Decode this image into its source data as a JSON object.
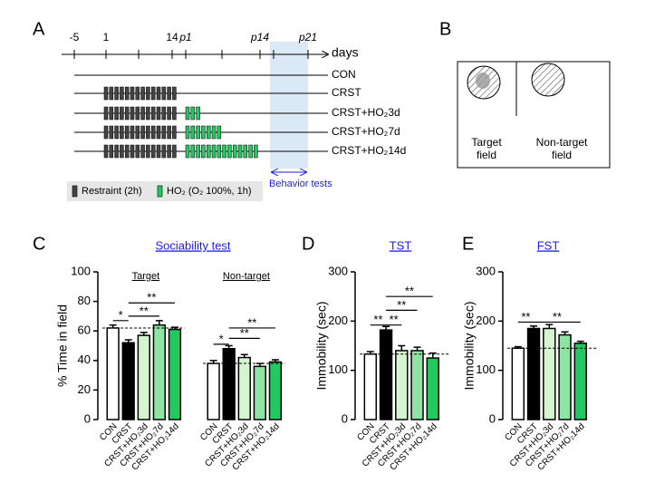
{
  "panel_a": {
    "letter": "A",
    "timeline_labels": [
      "-5",
      "1",
      "14",
      "p1",
      "p14",
      "p21"
    ],
    "axis_label": "days",
    "rows": [
      "CON",
      "CRST",
      "CRST+HO₂3d",
      "CRST+HO₂7d",
      "CRST+HO₂14d"
    ],
    "legend": [
      "Restraint (2h)",
      "HO₂ (O₂ 100%, 1h)"
    ],
    "behavior_label": "Behavior tests"
  },
  "panel_b": {
    "letter": "B",
    "target_label": [
      "Target",
      "field"
    ],
    "nontarget_label": [
      "Non-target",
      "field"
    ]
  },
  "chart_data": [
    {
      "type": "bar",
      "panel": "C",
      "title": "Sociability test",
      "ylabel": "% Time in field",
      "categories": [
        "CON",
        "CRST",
        "CRST+HO₂3d",
        "CRST+HO₂7d",
        "CRST+HO₂14d"
      ],
      "colors": [
        "#ffffff",
        "#000000",
        "#d4f5d0",
        "#8fe3a4",
        "#22c860"
      ],
      "ylim": [
        0,
        100
      ],
      "yticks": [
        0,
        20,
        40,
        60,
        80,
        100
      ],
      "groups": [
        {
          "label": "Target",
          "values": [
            62,
            52,
            57,
            64,
            61
          ],
          "errors": [
            2,
            2,
            2,
            3,
            1.5
          ],
          "reference_line": 62,
          "significance": [
            {
              "from": 0,
              "to": 1,
              "y": 67,
              "label": "*"
            },
            {
              "from": 1,
              "to": 3,
              "y": 70,
              "label": "**"
            },
            {
              "from": 1,
              "to": 4,
              "y": 79,
              "label": "**"
            }
          ]
        },
        {
          "label": "Non-target",
          "values": [
            38,
            48,
            42,
            36,
            39
          ],
          "errors": [
            2,
            2,
            2,
            2,
            1.5
          ],
          "reference_line": 38,
          "significance": [
            {
              "from": 0,
              "to": 1,
              "y": 51,
              "label": "*"
            },
            {
              "from": 1,
              "to": 3,
              "y": 55,
              "label": "**"
            },
            {
              "from": 1,
              "to": 4,
              "y": 62,
              "label": "**"
            }
          ]
        }
      ]
    },
    {
      "type": "bar",
      "panel": "D",
      "title": "TST",
      "ylabel": "Immobility (sec)",
      "categories": [
        "CON",
        "CRST",
        "CRST+HO₂3d",
        "CRST+HO₂7d",
        "CRST+HO₂14d"
      ],
      "colors": [
        "#ffffff",
        "#000000",
        "#d4f5d0",
        "#8fe3a4",
        "#22c860"
      ],
      "ylim": [
        0,
        300
      ],
      "yticks": [
        0,
        100,
        200,
        300
      ],
      "values": [
        133,
        182,
        140,
        140,
        125
      ],
      "errors": [
        5,
        7,
        10,
        7,
        10
      ],
      "reference_line": 133,
      "significance": [
        {
          "from": 0,
          "to": 1,
          "y": 192,
          "label": "**"
        },
        {
          "from": 1,
          "to": 2,
          "y": 192,
          "label": "**"
        },
        {
          "from": 1,
          "to": 3,
          "y": 222,
          "label": "**"
        },
        {
          "from": 1,
          "to": 4,
          "y": 250,
          "label": "**"
        }
      ]
    },
    {
      "type": "bar",
      "panel": "E",
      "title": "FST",
      "ylabel": "Immobility (sec)",
      "categories": [
        "CON",
        "CRST",
        "CRST+HO₂3d",
        "CRST+HO₂7d",
        "CRST+HO₂14d"
      ],
      "colors": [
        "#ffffff",
        "#000000",
        "#d4f5d0",
        "#8fe3a4",
        "#22c860"
      ],
      "ylim": [
        0,
        300
      ],
      "yticks": [
        0,
        100,
        200,
        300
      ],
      "values": [
        145,
        185,
        185,
        172,
        155
      ],
      "errors": [
        3,
        5,
        8,
        6,
        4
      ],
      "reference_line": 145,
      "significance": [
        {
          "from": 0,
          "to": 1,
          "y": 198,
          "label": "**"
        },
        {
          "from": 1,
          "to": 4,
          "y": 198,
          "label": "**"
        }
      ]
    }
  ]
}
